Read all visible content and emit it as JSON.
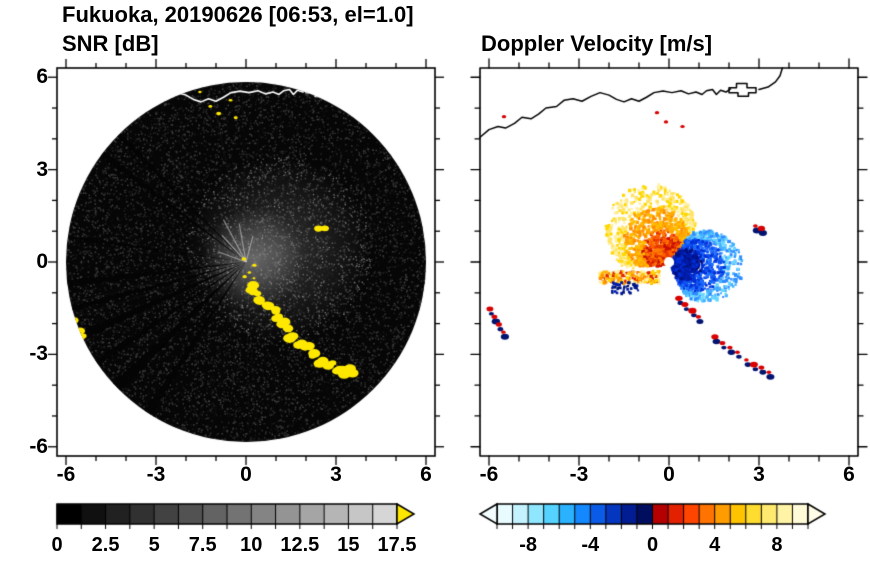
{
  "figure": {
    "title": "Fukuoka, 20190626 [06:53, el=1.0]"
  },
  "chart_data": [
    {
      "id": "snr",
      "type": "heatmap",
      "title": "SNR [dB]",
      "xlim": [
        -6.3,
        6.3
      ],
      "ylim": [
        -6.3,
        6.3
      ],
      "xticks": [
        -6,
        -3,
        0,
        3,
        6
      ],
      "xtick_labels": [
        "-6",
        "-3",
        "0",
        "3",
        "6"
      ],
      "yticks": [
        6,
        3,
        0,
        -3,
        -6
      ],
      "ytick_labels": [
        "6",
        "3",
        "0",
        "-3",
        "-6"
      ],
      "colorbar": {
        "range": [
          0,
          17.5
        ],
        "minor_step": 1.25,
        "tick_values": [
          0,
          2.5,
          5,
          7.5,
          10,
          12.5,
          15,
          17.5
        ],
        "tick_labels": [
          "0",
          "2.5",
          "5",
          "7.5",
          "10",
          "12.5",
          "15",
          "17.5"
        ],
        "gradient": [
          "#000000",
          "#d6d6d6"
        ],
        "over_arrow_color": "#ffe800"
      },
      "echo_color": "#ffe800",
      "scan": {
        "radius": 6.0,
        "background": "#060606",
        "noise": {
          "count": 9000,
          "min_gray": 12,
          "max_gray": 72,
          "bright_count": 650,
          "bright_min": 70,
          "bright_max": 135
        },
        "glow": {
          "cx": 0.25,
          "cy": 0.1,
          "r": 1.7,
          "alpha": 0.5
        },
        "glow2": {
          "cx": 1.1,
          "cy": 0.4,
          "r": 3.1,
          "alpha": 0.28
        },
        "bright_rays": [
          {
            "a": 100,
            "len": 1.3
          },
          {
            "a": 118,
            "len": 1.6
          },
          {
            "a": 132,
            "len": 1.2
          },
          {
            "a": 160,
            "len": 1.0
          },
          {
            "a": 75,
            "len": 0.9
          }
        ],
        "shadow_wedges": [
          {
            "angle": 187,
            "halfwidth": 1.1
          },
          {
            "angle": 195,
            "halfwidth": 0.8
          },
          {
            "angle": 204,
            "halfwidth": 1.5
          },
          {
            "angle": 214,
            "halfwidth": 1.0
          },
          {
            "angle": 224,
            "halfwidth": 1.6
          },
          {
            "angle": 237,
            "halfwidth": 1.2
          },
          {
            "angle": 135,
            "halfwidth": 0.7
          },
          {
            "angle": 143,
            "halfwidth": 0.9
          },
          {
            "angle": 172,
            "halfwidth": 0.5
          }
        ]
      },
      "echo_chains": [
        {
          "name": "southeast-arc",
          "per_point": 2,
          "jitter": 6,
          "rmin": 3.5,
          "rmax": 6.5,
          "points": [
            [
              0.2,
              -0.85
            ],
            [
              0.35,
              -1.05
            ],
            [
              0.5,
              -1.25
            ],
            [
              0.7,
              -1.45
            ],
            [
              0.9,
              -1.6
            ],
            [
              1.05,
              -1.8
            ],
            [
              1.2,
              -2.0
            ],
            [
              1.35,
              -2.2
            ],
            [
              1.55,
              -2.45
            ],
            [
              1.8,
              -2.65
            ],
            [
              2.05,
              -2.8
            ],
            [
              2.3,
              -3.0
            ],
            [
              2.55,
              -3.2
            ],
            [
              2.8,
              -3.35
            ],
            [
              3.05,
              -3.5
            ],
            [
              3.3,
              -3.6
            ],
            [
              3.5,
              -3.55
            ]
          ]
        },
        {
          "name": "near-center-specks",
          "per_point": 1,
          "jitter": 4,
          "rmin": 1.5,
          "rmax": 3,
          "points": [
            [
              0.1,
              -0.3
            ],
            [
              0.2,
              -0.55
            ],
            [
              -0.05,
              -0.5
            ],
            [
              0.3,
              -0.15
            ],
            [
              -0.1,
              0.05
            ]
          ]
        },
        {
          "name": "west-edge-patch",
          "per_point": 2,
          "jitter": 5,
          "rmin": 3,
          "rmax": 5,
          "points": [
            [
              -5.95,
              -1.6
            ],
            [
              -5.8,
              -1.9
            ],
            [
              -5.6,
              -2.2
            ],
            [
              -5.5,
              -2.4
            ]
          ]
        },
        {
          "name": "northeast-dash",
          "per_point": 1,
          "jitter": 3,
          "rmin": 3,
          "rmax": 4.5,
          "points": [
            [
              2.45,
              1.1
            ],
            [
              2.65,
              1.05
            ]
          ]
        },
        {
          "name": "north-specks",
          "per_point": 1,
          "jitter": 3,
          "rmin": 1.5,
          "rmax": 2.5,
          "points": [
            [
              -1.15,
              5.1
            ],
            [
              -0.9,
              4.85
            ],
            [
              -0.55,
              5.3
            ],
            [
              -1.5,
              5.5
            ],
            [
              -0.3,
              4.7
            ]
          ]
        }
      ]
    },
    {
      "id": "velocity",
      "type": "heatmap",
      "title": "Doppler Velocity [m/s]",
      "xlim": [
        -6.3,
        6.3
      ],
      "ylim": [
        -6.3,
        6.3
      ],
      "xticks": [
        -6,
        -3,
        0,
        3,
        6
      ],
      "xtick_labels": [
        "-6",
        "-3",
        "0",
        "3",
        "6"
      ],
      "yticks": [
        6,
        3,
        0,
        -3,
        -6
      ],
      "ytick_labels": [
        "6",
        "3",
        "0",
        "-3",
        "-6"
      ],
      "colorbar": {
        "range": [
          -10,
          10
        ],
        "minor_step": 1,
        "tick_values": [
          -8,
          -4,
          0,
          4,
          8
        ],
        "tick_labels": [
          "-8",
          "-4",
          "0",
          "4",
          "8"
        ],
        "under_arrow_color": "#f2fdff",
        "over_arrow_color": "#fffce8",
        "segments": [
          {
            "v0": -10,
            "v1": -9,
            "color": "#e8fbff"
          },
          {
            "v0": -9,
            "v1": -8,
            "color": "#c4f3ff"
          },
          {
            "v0": -8,
            "v1": -7,
            "color": "#8fe6ff"
          },
          {
            "v0": -7,
            "v1": -6,
            "color": "#55d2ff"
          },
          {
            "v0": -6,
            "v1": -5,
            "color": "#2bb2ff"
          },
          {
            "v0": -5,
            "v1": -4,
            "color": "#1488ff"
          },
          {
            "v0": -4,
            "v1": -3,
            "color": "#0a5ce8"
          },
          {
            "v0": -3,
            "v1": -2,
            "color": "#0536c0"
          },
          {
            "v0": -2,
            "v1": -1,
            "color": "#021c92"
          },
          {
            "v0": -1,
            "v1": 0,
            "color": "#000e60"
          },
          {
            "v0": 0,
            "v1": 1,
            "color": "#b40000"
          },
          {
            "v0": 1,
            "v1": 2,
            "color": "#e32000"
          },
          {
            "v0": 2,
            "v1": 3,
            "color": "#ff4500"
          },
          {
            "v0": 3,
            "v1": 4,
            "color": "#ff7300"
          },
          {
            "v0": 4,
            "v1": 5,
            "color": "#ff9c00"
          },
          {
            "v0": 5,
            "v1": 6,
            "color": "#ffc300"
          },
          {
            "v0": 6,
            "v1": 7,
            "color": "#ffdd30"
          },
          {
            "v0": 7,
            "v1": 8,
            "color": "#ffe96e"
          },
          {
            "v0": 8,
            "v1": 9,
            "color": "#fff3a6"
          },
          {
            "v0": 9,
            "v1": 10,
            "color": "#fffbd8"
          }
        ]
      },
      "colors": {
        "pos": "#d80000",
        "neg": "#001470"
      },
      "clusters": [
        {
          "name": "outbound-warm-fan",
          "cx": 0,
          "cy": 0,
          "a0": 55,
          "a1": 185,
          "r0": 0.2,
          "r_base": 1.5,
          "r_amp": 1.3,
          "rpow": 1.4,
          "count": 1600,
          "smin": 2,
          "smax": 3.6,
          "bands": [
            {
              "f0": 0,
              "colors": [
                "#c81000",
                "#e83800",
                "#ff5f00",
                "#ff7e00"
              ]
            },
            {
              "f0": 0.42,
              "colors": [
                "#ff8c00",
                "#ffa800",
                "#ffbe00"
              ]
            },
            {
              "f0": 0.72,
              "colors": [
                "#ffd700",
                "#ffe468",
                "#fff0a6"
              ]
            }
          ]
        },
        {
          "name": "inbound-blue-fan",
          "cx": 0,
          "cy": 0,
          "a0": -65,
          "a1": 55,
          "r0": 0.2,
          "r_base": 1.2,
          "r_amp": 1.2,
          "rpow": 1.4,
          "count": 1500,
          "smin": 2,
          "smax": 3.4,
          "bands": [
            {
              "f0": 0,
              "colors": [
                "#001080",
                "#001ca8",
                "#0030d8"
              ]
            },
            {
              "f0": 0.45,
              "colors": [
                "#0030d8",
                "#0f52f0",
                "#1e6eff"
              ]
            },
            {
              "f0": 0.75,
              "colors": [
                "#2e8cff",
                "#45b2ff",
                "#66d6ff"
              ]
            }
          ]
        }
      ],
      "strips": [
        {
          "name": "west-streak",
          "x0": -2.35,
          "x1": -0.35,
          "y0": -0.65,
          "y1": -0.25,
          "count": 260,
          "smin": 2,
          "smax": 3.2,
          "colors": [
            "#ffd700",
            "#ff9000",
            "#e02000",
            "#ffef9e",
            "#ffb400"
          ]
        },
        {
          "name": "west-streak-navy",
          "x0": -1.95,
          "x1": -1.05,
          "y0": -1.0,
          "y1": -0.62,
          "count": 45,
          "smin": 2,
          "smax": 3,
          "colors": [
            "#001470",
            "#001ca8"
          ]
        }
      ],
      "pair_chains": [
        {
          "points": [
            [
              0.35,
              -1.25
            ],
            [
              0.55,
              -1.45
            ],
            [
              0.8,
              -1.65
            ],
            [
              1.0,
              -1.85
            ]
          ]
        },
        {
          "points": [
            [
              1.55,
              -2.5
            ],
            [
              1.8,
              -2.7
            ],
            [
              2.05,
              -2.85
            ],
            [
              2.3,
              -3.0
            ]
          ]
        },
        {
          "points": [
            [
              2.6,
              -3.25
            ],
            [
              2.85,
              -3.4
            ],
            [
              3.1,
              -3.5
            ],
            [
              3.35,
              -3.65
            ]
          ]
        },
        {
          "points": [
            [
              -5.95,
              -1.6
            ],
            [
              -5.8,
              -1.85
            ],
            [
              -5.65,
              -2.1
            ],
            [
              -5.5,
              -2.35
            ]
          ]
        },
        {
          "points": [
            [
              2.9,
              1.1
            ],
            [
              3.1,
              1.02
            ]
          ]
        }
      ],
      "red_specks": [
        [
          -0.4,
          4.85
        ],
        [
          0.45,
          4.4
        ],
        [
          -5.5,
          4.72
        ],
        [
          -0.1,
          4.55
        ]
      ]
    }
  ],
  "coastline": {
    "segments": [
      [
        [
          -6.3,
          4.05
        ],
        [
          -6.0,
          4.3
        ],
        [
          -5.7,
          4.4
        ],
        [
          -5.45,
          4.35
        ],
        [
          -5.15,
          4.5
        ],
        [
          -4.9,
          4.7
        ],
        [
          -4.6,
          4.65
        ],
        [
          -4.35,
          4.8
        ],
        [
          -4.1,
          5.0
        ],
        [
          -3.75,
          5.05
        ],
        [
          -3.5,
          5.25
        ],
        [
          -3.2,
          5.3
        ],
        [
          -2.9,
          5.22
        ],
        [
          -2.6,
          5.38
        ],
        [
          -2.3,
          5.5
        ],
        [
          -2.0,
          5.42
        ],
        [
          -1.75,
          5.28
        ],
        [
          -1.5,
          5.2
        ],
        [
          -1.25,
          5.3
        ],
        [
          -1.0,
          5.22
        ],
        [
          -0.75,
          5.35
        ],
        [
          -0.5,
          5.5
        ],
        [
          -0.2,
          5.55
        ],
        [
          0.1,
          5.5
        ],
        [
          0.4,
          5.56
        ],
        [
          0.65,
          5.46
        ],
        [
          0.9,
          5.52
        ],
        [
          1.1,
          5.44
        ],
        [
          1.25,
          5.56
        ],
        [
          1.45,
          5.6
        ],
        [
          1.58,
          5.44
        ],
        [
          1.72,
          5.58
        ],
        [
          1.9,
          5.52
        ],
        [
          2.05,
          5.62
        ]
      ],
      [
        [
          3.0,
          5.6
        ],
        [
          3.3,
          5.68
        ],
        [
          3.55,
          5.85
        ],
        [
          3.7,
          6.05
        ],
        [
          3.78,
          6.3
        ]
      ]
    ],
    "closed": [
      [
        [
          2.0,
          5.5
        ],
        [
          2.0,
          5.66
        ],
        [
          2.25,
          5.66
        ],
        [
          2.25,
          5.8
        ],
        [
          2.6,
          5.8
        ],
        [
          2.6,
          5.66
        ],
        [
          2.9,
          5.66
        ],
        [
          2.9,
          5.5
        ],
        [
          2.65,
          5.5
        ],
        [
          2.65,
          5.38
        ],
        [
          2.3,
          5.38
        ],
        [
          2.3,
          5.5
        ]
      ]
    ]
  }
}
